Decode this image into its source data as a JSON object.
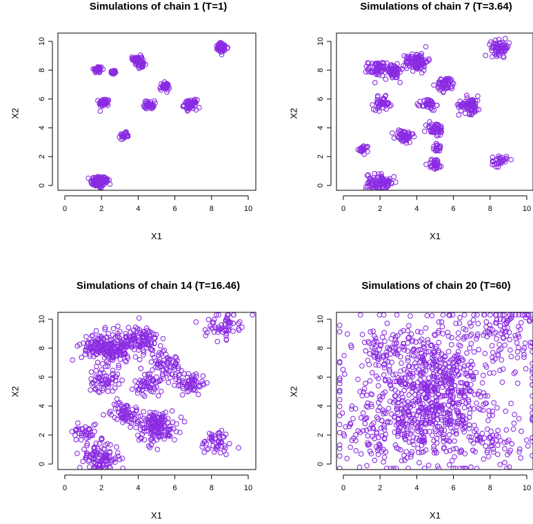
{
  "figure": {
    "point_color": "#8a2be2",
    "background": "#ffffff"
  },
  "chart_data": [
    {
      "type": "scatter",
      "title": "Simulations of chain 1 (T=1)",
      "xlabel": "X1",
      "ylabel": "X2",
      "xlim": [
        0,
        10
      ],
      "ylim": [
        0,
        10
      ],
      "xticks": [
        "0",
        "2",
        "4",
        "6",
        "8",
        "10"
      ],
      "yticks": [
        "0",
        "2",
        "4",
        "6",
        "8",
        "10"
      ],
      "grid": false,
      "clusters": [
        {
          "x": 1.85,
          "y": 0.25,
          "spread": 0.22,
          "n": 90
        },
        {
          "x": 2.2,
          "y": 0.35,
          "spread": 0.12,
          "n": 20
        },
        {
          "x": 1.8,
          "y": 8.05,
          "spread": 0.12,
          "n": 40
        },
        {
          "x": 2.65,
          "y": 7.85,
          "spread": 0.08,
          "n": 20
        },
        {
          "x": 2.15,
          "y": 5.75,
          "spread": 0.14,
          "n": 45
        },
        {
          "x": 3.25,
          "y": 3.45,
          "spread": 0.11,
          "n": 30
        },
        {
          "x": 3.95,
          "y": 8.75,
          "spread": 0.13,
          "n": 40
        },
        {
          "x": 4.15,
          "y": 8.4,
          "spread": 0.12,
          "n": 30
        },
        {
          "x": 4.6,
          "y": 5.6,
          "spread": 0.14,
          "n": 40
        },
        {
          "x": 5.45,
          "y": 6.85,
          "spread": 0.13,
          "n": 40
        },
        {
          "x": 6.85,
          "y": 5.6,
          "spread": 0.17,
          "n": 60
        },
        {
          "x": 8.55,
          "y": 9.55,
          "spread": 0.17,
          "n": 60
        }
      ]
    },
    {
      "type": "scatter",
      "title": "Simulations of chain 7 (T=3.64)",
      "xlabel": "X1",
      "ylabel": "X2",
      "xlim": [
        0,
        10
      ],
      "ylim": [
        0,
        10
      ],
      "xticks": [
        "0",
        "2",
        "4",
        "6",
        "8",
        "10"
      ],
      "yticks": [
        "0",
        "2",
        "4",
        "6",
        "8",
        "10"
      ],
      "grid": false,
      "clusters": [
        {
          "x": 1.85,
          "y": 0.2,
          "spread": 0.3,
          "n": 70
        },
        {
          "x": 2.4,
          "y": 0.25,
          "spread": 0.15,
          "n": 20
        },
        {
          "x": 1.1,
          "y": 2.5,
          "spread": 0.15,
          "n": 20
        },
        {
          "x": 1.85,
          "y": 8.1,
          "spread": 0.25,
          "n": 60
        },
        {
          "x": 2.75,
          "y": 7.9,
          "spread": 0.25,
          "n": 60
        },
        {
          "x": 2.1,
          "y": 5.7,
          "spread": 0.22,
          "n": 45
        },
        {
          "x": 3.3,
          "y": 3.4,
          "spread": 0.25,
          "n": 55
        },
        {
          "x": 4.0,
          "y": 8.6,
          "spread": 0.3,
          "n": 110
        },
        {
          "x": 4.65,
          "y": 5.6,
          "spread": 0.2,
          "n": 40
        },
        {
          "x": 5.0,
          "y": 3.9,
          "spread": 0.25,
          "n": 45
        },
        {
          "x": 5.15,
          "y": 2.6,
          "spread": 0.15,
          "n": 20
        },
        {
          "x": 5.0,
          "y": 1.5,
          "spread": 0.2,
          "n": 30
        },
        {
          "x": 5.6,
          "y": 7.0,
          "spread": 0.25,
          "n": 50
        },
        {
          "x": 6.9,
          "y": 5.6,
          "spread": 0.3,
          "n": 80
        },
        {
          "x": 8.5,
          "y": 1.7,
          "spread": 0.2,
          "n": 30
        },
        {
          "x": 8.55,
          "y": 9.55,
          "spread": 0.25,
          "n": 70
        }
      ]
    },
    {
      "type": "scatter",
      "title": "Simulations of chain 14 (T=16.46)",
      "xlabel": "X1",
      "ylabel": "X2",
      "xlim": [
        0,
        10
      ],
      "ylim": [
        0,
        10
      ],
      "xticks": [
        "0",
        "2",
        "4",
        "6",
        "8",
        "10"
      ],
      "yticks": [
        "0",
        "2",
        "4",
        "6",
        "8",
        "10"
      ],
      "grid": false,
      "clusters": [
        {
          "x": 1.9,
          "y": 0.4,
          "spread": 0.55,
          "n": 110
        },
        {
          "x": 1.1,
          "y": 2.3,
          "spread": 0.35,
          "n": 35
        },
        {
          "x": 1.9,
          "y": 8.1,
          "spread": 0.5,
          "n": 110
        },
        {
          "x": 2.7,
          "y": 7.8,
          "spread": 0.4,
          "n": 70
        },
        {
          "x": 2.1,
          "y": 5.8,
          "spread": 0.4,
          "n": 60
        },
        {
          "x": 3.3,
          "y": 3.5,
          "spread": 0.4,
          "n": 70
        },
        {
          "x": 4.0,
          "y": 8.5,
          "spread": 0.55,
          "n": 130
        },
        {
          "x": 4.6,
          "y": 5.5,
          "spread": 0.4,
          "n": 60
        },
        {
          "x": 5.0,
          "y": 2.6,
          "spread": 0.55,
          "n": 150
        },
        {
          "x": 5.6,
          "y": 6.9,
          "spread": 0.4,
          "n": 60
        },
        {
          "x": 6.9,
          "y": 5.6,
          "spread": 0.4,
          "n": 60
        },
        {
          "x": 8.3,
          "y": 1.5,
          "spread": 0.45,
          "n": 50
        },
        {
          "x": 8.6,
          "y": 9.6,
          "spread": 0.45,
          "n": 60
        }
      ]
    },
    {
      "type": "scatter",
      "title": "Simulations of chain 20 (T=60)",
      "xlabel": "X1",
      "ylabel": "X2",
      "xlim": [
        0,
        10
      ],
      "ylim": [
        0,
        10
      ],
      "xticks": [
        "0",
        "2",
        "4",
        "6",
        "8",
        "10"
      ],
      "yticks": [
        "0",
        "2",
        "4",
        "6",
        "8",
        "10"
      ],
      "grid": false,
      "clusters": [
        {
          "x": 5.0,
          "y": 5.0,
          "spread": 2.6,
          "n": 520
        },
        {
          "x": 4.7,
          "y": 3.0,
          "spread": 1.2,
          "n": 180
        },
        {
          "x": 5.2,
          "y": 6.0,
          "spread": 1.2,
          "n": 150
        },
        {
          "x": 1.8,
          "y": 2.0,
          "spread": 1.0,
          "n": 90
        },
        {
          "x": 2.5,
          "y": 7.8,
          "spread": 1.0,
          "n": 90
        },
        {
          "x": 8.6,
          "y": 9.4,
          "spread": 0.9,
          "n": 80
        },
        {
          "x": 8.3,
          "y": 1.6,
          "spread": 0.9,
          "n": 60
        }
      ]
    }
  ]
}
